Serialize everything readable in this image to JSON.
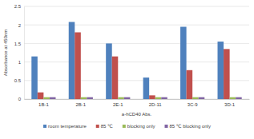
{
  "chart_data": {
    "type": "bar",
    "y_label": "Absorbance at 450nm",
    "x_label": "a-hCD40 Abs.",
    "categories": [
      "1B-1",
      "2B-1",
      "2E-1",
      "2D-11",
      "3C-9",
      "3D-1"
    ],
    "series": [
      {
        "name": "room temperature",
        "color": "#4f81bd",
        "values": [
          1.15,
          2.08,
          1.5,
          0.58,
          1.95,
          1.55
        ]
      },
      {
        "name": "85 ℃",
        "color": "#c0504d",
        "values": [
          0.18,
          1.8,
          1.15,
          0.1,
          0.78,
          1.35
        ]
      },
      {
        "name": "blocking only",
        "color": "#9bbb59",
        "values": [
          0.05,
          0.05,
          0.05,
          0.05,
          0.05,
          0.05
        ]
      },
      {
        "name": "85 ℃ blocking only",
        "color": "#8064a2",
        "values": [
          0.05,
          0.05,
          0.05,
          0.05,
          0.05,
          0.05
        ]
      }
    ],
    "ylim": [
      0,
      2.5
    ],
    "yticks": [
      0,
      0.5,
      1,
      1.5,
      2,
      2.5
    ],
    "grid": true,
    "legend": "bottom"
  }
}
